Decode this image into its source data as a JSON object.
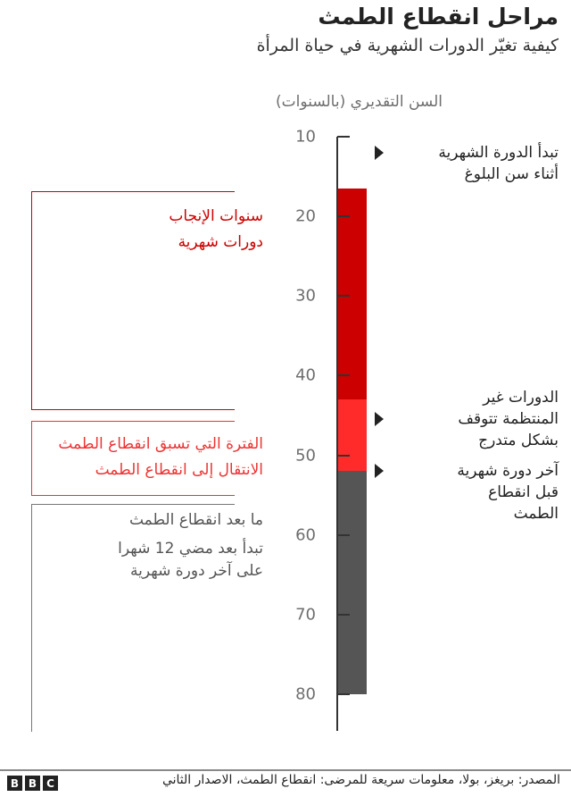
{
  "header": {
    "title": "مراحل انقطاع الطمث",
    "subtitle": "كيفية تغيّر الدورات الشهرية في حياة المرأة"
  },
  "chart_data": {
    "type": "bar",
    "orientation": "vertical-timeline",
    "ylabel": "السن التقديري (بالسنوات)",
    "ylim": [
      10,
      80
    ],
    "ticks": [
      "10",
      "20",
      "30",
      "40",
      "50",
      "60",
      "70",
      "80"
    ],
    "tick_values": [
      10,
      20,
      30,
      40,
      50,
      60,
      70,
      80
    ],
    "segments": [
      {
        "from": 16.5,
        "to": 43,
        "color": "#cc0000"
      },
      {
        "from": 43,
        "to": 52,
        "color": "#ff2a2a"
      },
      {
        "from": 52,
        "to": 80,
        "color": "#555555"
      }
    ],
    "annotations": [
      {
        "age": 12,
        "text": [
          "تبدأ الدورة الشهرية",
          "أثناء سن البلوغ"
        ]
      },
      {
        "age": 45.5,
        "text": [
          "الدورات غير",
          "المنتظمة تتوقف",
          "بشكل متدرج"
        ]
      },
      {
        "age": 52,
        "text": [
          "آخر دورة شهرية",
          "قبل انقطاع",
          "الطمث"
        ]
      }
    ],
    "phases": [
      {
        "from": 16.5,
        "to": 43,
        "color": "#cc0000",
        "lines": [
          "سنوات الإنجاب",
          "دورات شهرية"
        ]
      },
      {
        "from": 44,
        "to": 53,
        "color": "#ee3333",
        "lines": [
          "الفترة التي تسبق انقطاع الطمث",
          "الانتقال إلى انقطاع الطمث"
        ]
      },
      {
        "from": 55,
        "to": 80,
        "color": "#555555",
        "lines": [
          "ما بعد انقطاع الطمث",
          "تبدأ بعد مضي 12 شهرا",
          "على آخر دورة شهرية"
        ]
      }
    ]
  },
  "footer": {
    "source": "المصدر: بريغز، بولا، معلومات سريعة للمرضى: انقطاع الطمث، الاصدار الثاني",
    "logo": [
      "B",
      "B",
      "C"
    ]
  }
}
